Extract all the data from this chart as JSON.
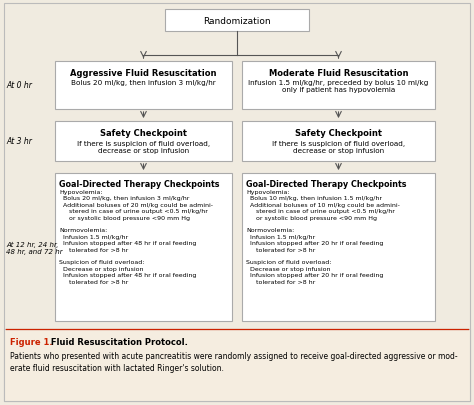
{
  "bg_color": "#f0ebe0",
  "box_fill": "#ffffff",
  "box_edge": "#aaaaaa",
  "arrow_color": "#555555",
  "title_color": "#cc2200",
  "fig_caption_bold": "Figure 1.",
  "fig_caption_normal": " Fluid Resuscitation Protocol.",
  "fig_description": "Patients who presented with acute pancreatitis were randomly assigned to receive goal-directed aggressive or mod-\nerate fluid resuscitation with lactated Ringer's solution.",
  "randomization_label": "Randomization",
  "left_label_0hr": "At 0 hr",
  "left_label_3hr": "At 3 hr",
  "left_label_rest": "At 12 hr, 24 hr,\n48 hr, and 72 hr",
  "box_agg_title": "Aggressive Fluid Resuscitation",
  "box_agg_body": "Bolus 20 ml/kg, then infusion 3 ml/kg/hr",
  "box_mod_title": "Moderate Fluid Resuscitation",
  "box_mod_body": "Infusion 1.5 ml/kg/hr, preceded by bolus 10 ml/kg\nonly if patient has hypovolemia",
  "box_safety_title": "Safety Checkpoint",
  "box_safety_body": "If there is suspicion of fluid overload,\ndecrease or stop infusion",
  "box_gdl_left_title": "Goal-Directed Therapy Checkpoints",
  "box_gdl_left_body": "Hypovolemia:\n  Bolus 20 ml/kg, then infusion 3 ml/kg/hr\n  Additional boluses of 20 ml/kg could be admini-\n     stered in case of urine output <0.5 ml/kg/hr\n     or systolic blood pressure <90 mm Hg\n\nNormovolemia:\n  Infusion 1.5 ml/kg/hr\n  Infusion stopped after 48 hr if oral feeding\n     tolerated for >8 hr\n\nSuspicion of fluid overload:\n  Decrease or stop infusion\n  Infusion stopped after 48 hr if oral feeding\n     tolerated for >8 hr",
  "box_gdl_right_title": "Goal-Directed Therapy Checkpoints",
  "box_gdl_right_body": "Hypovolemia:\n  Bolus 10 ml/kg, then infusion 1.5 ml/kg/hr\n  Additional boluses of 10 ml/kg could be admini-\n     stered in case of urine output <0.5 ml/kg/hr\n     or systolic blood pressure <90 mm Hg\n\nNormovolemia:\n  Infusion 1.5 ml/kg/hr\n  Infusion stopped after 20 hr if oral feeding\n     tolerated for >8 hr\n\nSuspicion of fluid overload:\n  Decrease or stop infusion\n  Infusion stopped after 20 hr if oral feeding\n     tolerated for >8 hr"
}
